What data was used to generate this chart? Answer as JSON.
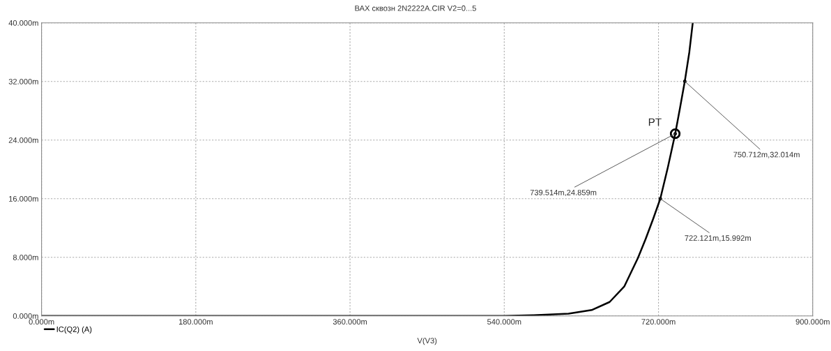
{
  "chart_data": {
    "type": "line",
    "title": "ВАХ сквозн 2N2222A.CIR V2=0...5",
    "xlabel": "V(V3)",
    "legend": "bottom left",
    "series": [
      {
        "name": "IC(Q2) (A)",
        "color": "#000000",
        "x": [
          0,
          540,
          574,
          615,
          642,
          663,
          680,
          696,
          705,
          714,
          722.121,
          731,
          739.514,
          745,
          750.712,
          756,
          760
        ],
        "values": [
          0,
          0,
          0.1,
          0.3,
          0.8,
          1.9,
          4.0,
          7.9,
          10.5,
          13.3,
          15.992,
          20.3,
          24.859,
          28.3,
          32.014,
          36.0,
          40.0
        ]
      }
    ],
    "xlim": [
      0,
      900
    ],
    "ylim": [
      0,
      40
    ],
    "xticks": [
      {
        "value": 0,
        "label": "0.000m"
      },
      {
        "value": 180,
        "label": "180.000m"
      },
      {
        "value": 360,
        "label": "360.000m"
      },
      {
        "value": 540,
        "label": "540.000m"
      },
      {
        "value": 720,
        "label": "720.000m"
      },
      {
        "value": 900,
        "label": "900.000m"
      }
    ],
    "yticks": [
      {
        "value": 0,
        "label": "0.000m"
      },
      {
        "value": 8,
        "label": "8.000m"
      },
      {
        "value": 16,
        "label": "16.000m"
      },
      {
        "value": 24,
        "label": "24.000m"
      },
      {
        "value": 32,
        "label": "32.000m"
      },
      {
        "value": 40,
        "label": "40.000m"
      }
    ],
    "grid": true,
    "line_style": "solid",
    "annotations": [
      {
        "text": "PT",
        "x": 739.514,
        "y": 24.859
      },
      {
        "text": "739.514m,24.859m",
        "x": 739.514,
        "y": 24.859
      },
      {
        "text": "750.712m,32.014m",
        "x": 750.712,
        "y": 32.014
      },
      {
        "text": "722.121m,15.992m",
        "x": 722.121,
        "y": 15.992
      }
    ]
  }
}
